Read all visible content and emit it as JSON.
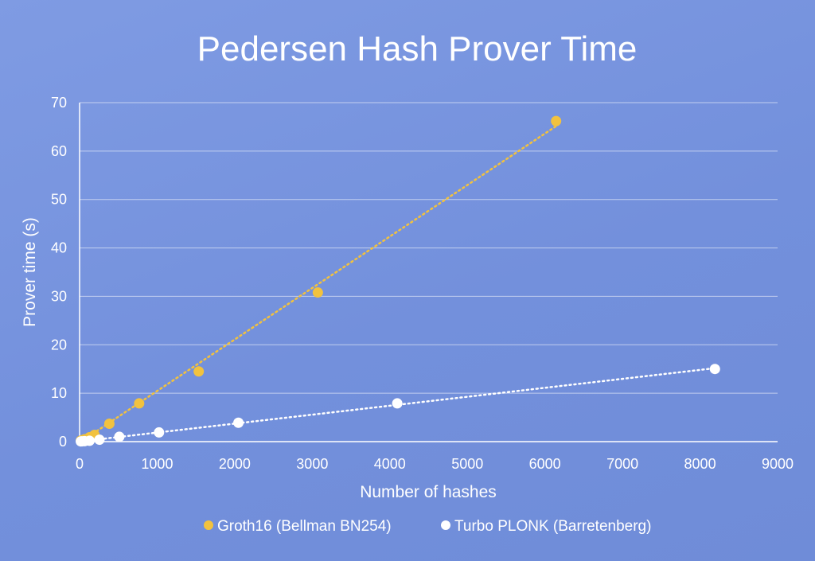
{
  "chart_data": {
    "type": "scatter",
    "title": "Pedersen Hash Prover Time",
    "xlabel": "Number of hashes",
    "ylabel": "Prover time (s)",
    "xlim": [
      0,
      9000
    ],
    "ylim": [
      0,
      70
    ],
    "xticks": [
      0,
      1000,
      2000,
      3000,
      4000,
      5000,
      6000,
      7000,
      8000,
      9000
    ],
    "yticks": [
      0,
      10,
      20,
      30,
      40,
      50,
      60,
      70
    ],
    "grid": "horizontal",
    "legend_position": "bottom",
    "trendline": "linear-dotted",
    "series": [
      {
        "name": "Groth16 (Bellman BN254)",
        "color": "#f2c23e",
        "x": [
          16,
          32,
          64,
          128,
          192,
          384,
          768,
          1536,
          3072,
          6144
        ],
        "y": [
          0.2,
          0.3,
          0.5,
          0.9,
          1.4,
          3.7,
          7.9,
          14.5,
          30.8,
          66.2
        ]
      },
      {
        "name": "Turbo PLONK (Barretenberg)",
        "color": "#ffffff",
        "x": [
          16,
          32,
          64,
          128,
          256,
          512,
          1024,
          2048,
          4096,
          8192
        ],
        "y": [
          0.05,
          0.07,
          0.1,
          0.18,
          0.4,
          1.0,
          1.9,
          3.9,
          7.9,
          15.0
        ]
      }
    ]
  }
}
